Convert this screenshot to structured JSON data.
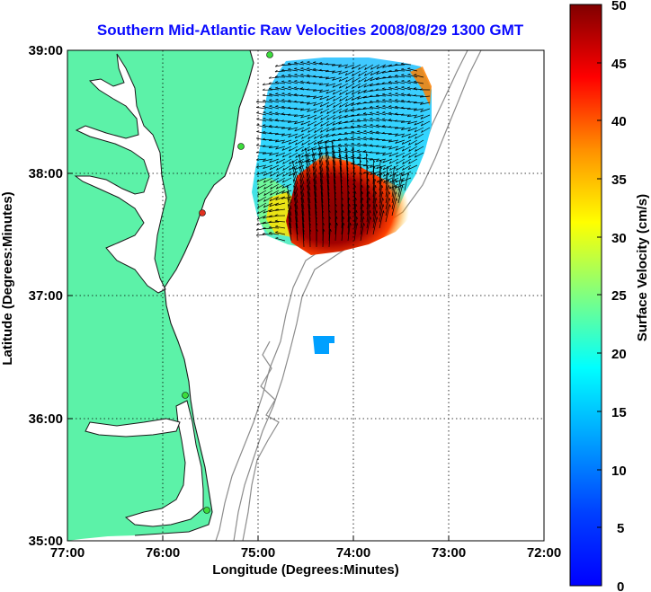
{
  "title": "Southern Mid-Atlantic Raw Velocities 2008/08/29 1300 GMT",
  "colors": {
    "title": "#0a0aff",
    "land": "#5cf2a8",
    "coast": "#1a1a1a",
    "isobath": "#8c8c8c",
    "station": "#3cdc3c",
    "station_active": "#e03020",
    "vector": "#000000"
  },
  "map": {
    "x_axis_label": "Longitude (Degrees:Minutes)",
    "y_axis_label": "Latitude (Degrees:Minutes)",
    "x_ticks": [
      "77:00",
      "76:00",
      "75:00",
      "74:00",
      "73:00",
      "72:00"
    ],
    "y_ticks": [
      "39:00",
      "38:00",
      "37:00",
      "36:00",
      "35:00"
    ],
    "grid": "dotted",
    "lon_range": [
      -77,
      -72
    ],
    "lat_range": [
      35,
      39
    ]
  },
  "colorbar": {
    "label": "Surface Velocity (cm/s)",
    "ticks": [
      "50",
      "45",
      "40",
      "35",
      "30",
      "25",
      "20",
      "15",
      "10",
      "5",
      "0"
    ],
    "range": [
      0,
      50
    ],
    "colormap": "jet"
  },
  "icons": {
    "station_marker": "circle-icon",
    "current_vector": "arrow-icon"
  }
}
